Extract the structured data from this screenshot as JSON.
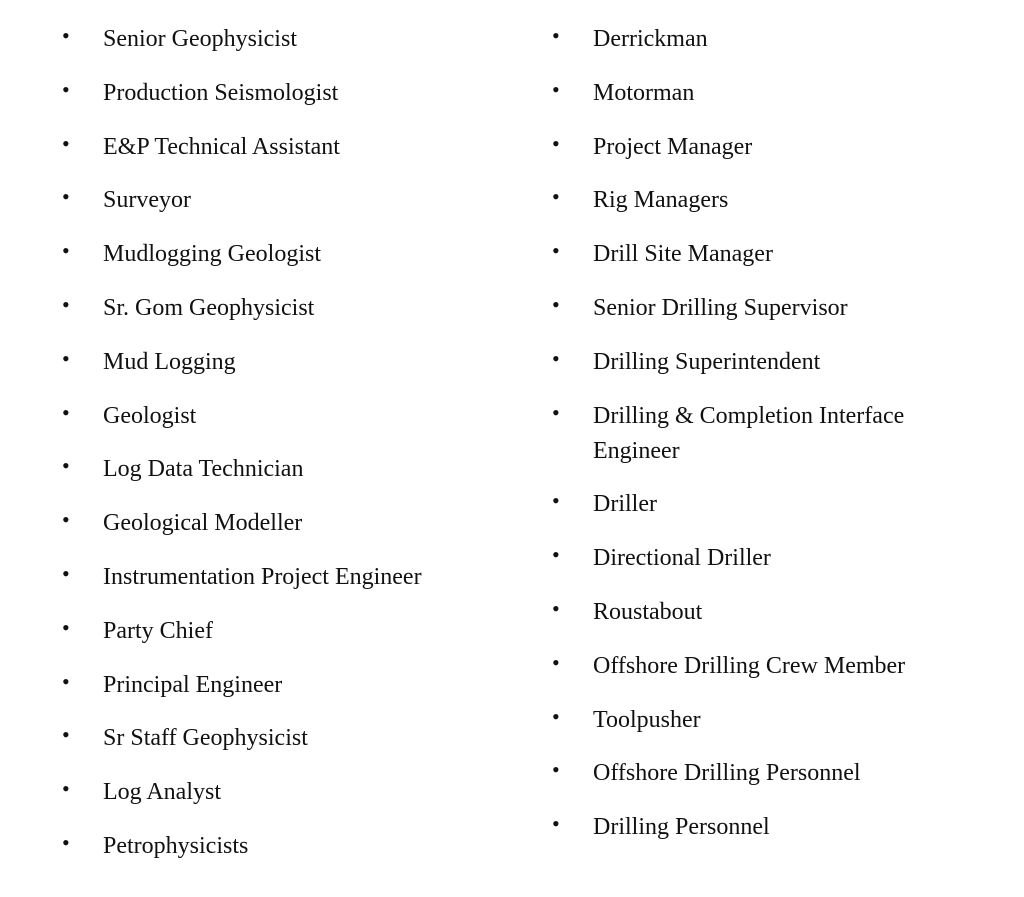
{
  "left_column": [
    "Senior Geophysicist",
    "Production Seismologist",
    "E&P Technical Assistant",
    "Surveyor",
    "Mudlogging Geologist",
    "Sr. Gom Geophysicist",
    "Mud Logging",
    "Geologist",
    "Log Data Technician",
    "Geological Modeller",
    "Instrumentation Project Engineer",
    "Party Chief",
    "Principal Engineer",
    "Sr Staff Geophysicist",
    "Log Analyst",
    "Petrophysicists"
  ],
  "right_column": [
    "Derrickman",
    "Motorman",
    "Project Manager",
    "Rig Managers",
    "Drill Site Manager",
    "Senior Drilling Supervisor",
    "Drilling Superintendent",
    "Drilling & Completion Interface Engineer",
    "Driller",
    "Directional Driller",
    "Roustabout",
    "Offshore Drilling Crew Member",
    "Toolpusher",
    "Offshore Drilling Personnel",
    "Drilling Personnel"
  ],
  "bullet_glyph": "•"
}
